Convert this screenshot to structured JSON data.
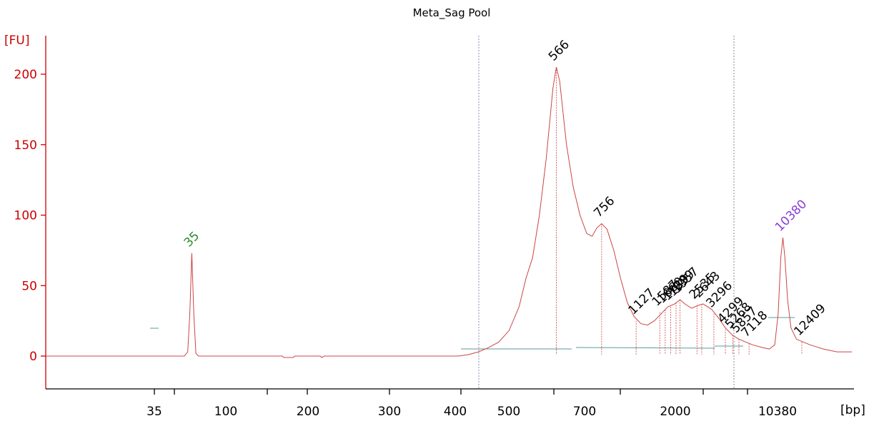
{
  "chart_data": {
    "type": "line",
    "title": "Meta_Sag Pool",
    "ylabel": "[FU]",
    "xlabel": "[bp]",
    "ylim": [
      -20,
      225
    ],
    "y_ticks": [
      0,
      50,
      100,
      150,
      200
    ],
    "x_tick_labels": [
      "35",
      "100",
      "200",
      "300",
      "400",
      "500",
      "700",
      "2000",
      "10380"
    ],
    "colors": {
      "trace": "#cc4444",
      "axis": "#cc0000",
      "marker_lower": "#2a8a2a",
      "marker_upper": "#8a3fd8",
      "baseline": "#5a9a9a",
      "region_line": "#8a8ab8"
    },
    "series": [
      {
        "name": "",
        "points": [
          [
            0,
            0
          ],
          [
            150,
            0
          ],
          [
            205,
            0
          ],
          [
            210,
            3
          ],
          [
            213,
            30
          ],
          [
            216,
            73
          ],
          [
            219,
            30
          ],
          [
            222,
            2
          ],
          [
            226,
            0
          ],
          [
            350,
            0
          ],
          [
            352,
            -1
          ],
          [
            366,
            -1
          ],
          [
            368,
            0
          ],
          [
            406,
            0
          ],
          [
            408,
            -1
          ],
          [
            412,
            0
          ],
          [
            610,
            0
          ],
          [
            625,
            1
          ],
          [
            640,
            3
          ],
          [
            655,
            6
          ],
          [
            670,
            10
          ],
          [
            685,
            18
          ],
          [
            700,
            35
          ],
          [
            710,
            55
          ],
          [
            720,
            70
          ],
          [
            730,
            100
          ],
          [
            740,
            140
          ],
          [
            750,
            190
          ],
          [
            755,
            205
          ],
          [
            760,
            195
          ],
          [
            770,
            150
          ],
          [
            780,
            120
          ],
          [
            790,
            100
          ],
          [
            800,
            87
          ],
          [
            808,
            85
          ],
          [
            815,
            91
          ],
          [
            822,
            94
          ],
          [
            830,
            90
          ],
          [
            840,
            75
          ],
          [
            850,
            55
          ],
          [
            860,
            38
          ],
          [
            870,
            28
          ],
          [
            880,
            23
          ],
          [
            890,
            22
          ],
          [
            900,
            25
          ],
          [
            910,
            30
          ],
          [
            920,
            35
          ],
          [
            930,
            37
          ],
          [
            938,
            40
          ],
          [
            945,
            37
          ],
          [
            955,
            34
          ],
          [
            965,
            36
          ],
          [
            972,
            37
          ],
          [
            985,
            33
          ],
          [
            995,
            27
          ],
          [
            1005,
            20
          ],
          [
            1015,
            15
          ],
          [
            1025,
            12
          ],
          [
            1035,
            10
          ],
          [
            1045,
            8
          ],
          [
            1060,
            6
          ],
          [
            1070,
            5
          ],
          [
            1078,
            8
          ],
          [
            1083,
            30
          ],
          [
            1087,
            70
          ],
          [
            1090,
            84
          ],
          [
            1093,
            70
          ],
          [
            1097,
            40
          ],
          [
            1102,
            20
          ],
          [
            1110,
            12
          ],
          [
            1120,
            10
          ],
          [
            1130,
            8
          ],
          [
            1150,
            5
          ],
          [
            1170,
            3
          ],
          [
            1192,
            3
          ]
        ]
      }
    ],
    "peaks": [
      {
        "label": "35",
        "px": 216,
        "fu": 73,
        "marker": "lower"
      },
      {
        "label": "566",
        "px": 755,
        "fu": 205,
        "marker": null
      },
      {
        "label": "756",
        "px": 822,
        "fu": 94,
        "marker": null
      },
      {
        "label": "1127",
        "px": 873,
        "fu": 25,
        "marker": null
      },
      {
        "label": "1587",
        "px": 908,
        "fu": 31,
        "marker": null
      },
      {
        "label": "1660",
        "px": 916,
        "fu": 33,
        "marker": null
      },
      {
        "label": "1729",
        "px": 924,
        "fu": 35,
        "marker": null
      },
      {
        "label": "1839",
        "px": 932,
        "fu": 38,
        "marker": null
      },
      {
        "label": "1957",
        "px": 938,
        "fu": 40,
        "marker": null
      },
      {
        "label": "2535",
        "px": 963,
        "fu": 36,
        "marker": null
      },
      {
        "label": "2643",
        "px": 970,
        "fu": 37,
        "marker": null
      },
      {
        "label": "3296",
        "px": 988,
        "fu": 30,
        "marker": null
      },
      {
        "label": "4299",
        "px": 1005,
        "fu": 19,
        "marker": null
      },
      {
        "label": "5268",
        "px": 1016,
        "fu": 15,
        "marker": null
      },
      {
        "label": "5857",
        "px": 1025,
        "fu": 12,
        "marker": null
      },
      {
        "label": "7118",
        "px": 1040,
        "fu": 9,
        "marker": null
      },
      {
        "label": "10380",
        "px": 1090,
        "fu": 84,
        "marker": "upper"
      },
      {
        "label": "12409",
        "px": 1118,
        "fu": 10,
        "marker": null
      }
    ]
  }
}
